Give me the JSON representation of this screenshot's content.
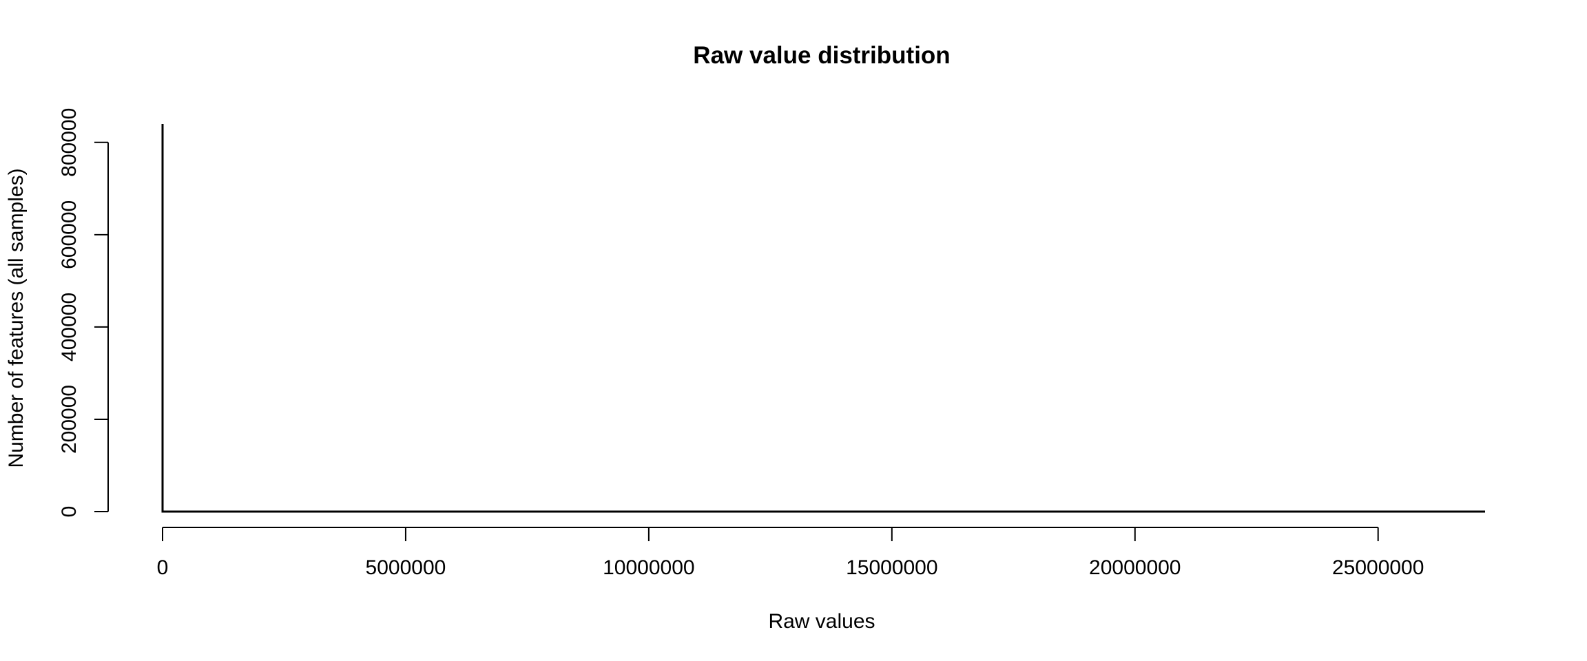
{
  "chart_data": {
    "type": "line",
    "title": "Raw value distribution",
    "xlabel": "Raw values",
    "ylabel": "Number of features (all samples)",
    "xlim": [
      0,
      27200000
    ],
    "ylim": [
      0,
      840000
    ],
    "x_ticks": [
      0,
      5000000,
      10000000,
      15000000,
      20000000,
      25000000
    ],
    "x_tick_labels": [
      "0",
      "5000000",
      "10000000",
      "15000000",
      "20000000",
      "25000000"
    ],
    "y_ticks": [
      0,
      200000,
      400000,
      600000,
      800000
    ],
    "y_tick_labels": [
      "0",
      "200000",
      "400000",
      "600000",
      "800000"
    ],
    "grid": false,
    "legend": "none",
    "series": [
      {
        "x": [
          0,
          0,
          27200000
        ],
        "y": [
          840000,
          0,
          0
        ]
      }
    ],
    "line_color": "#000000",
    "background": "#ffffff"
  }
}
